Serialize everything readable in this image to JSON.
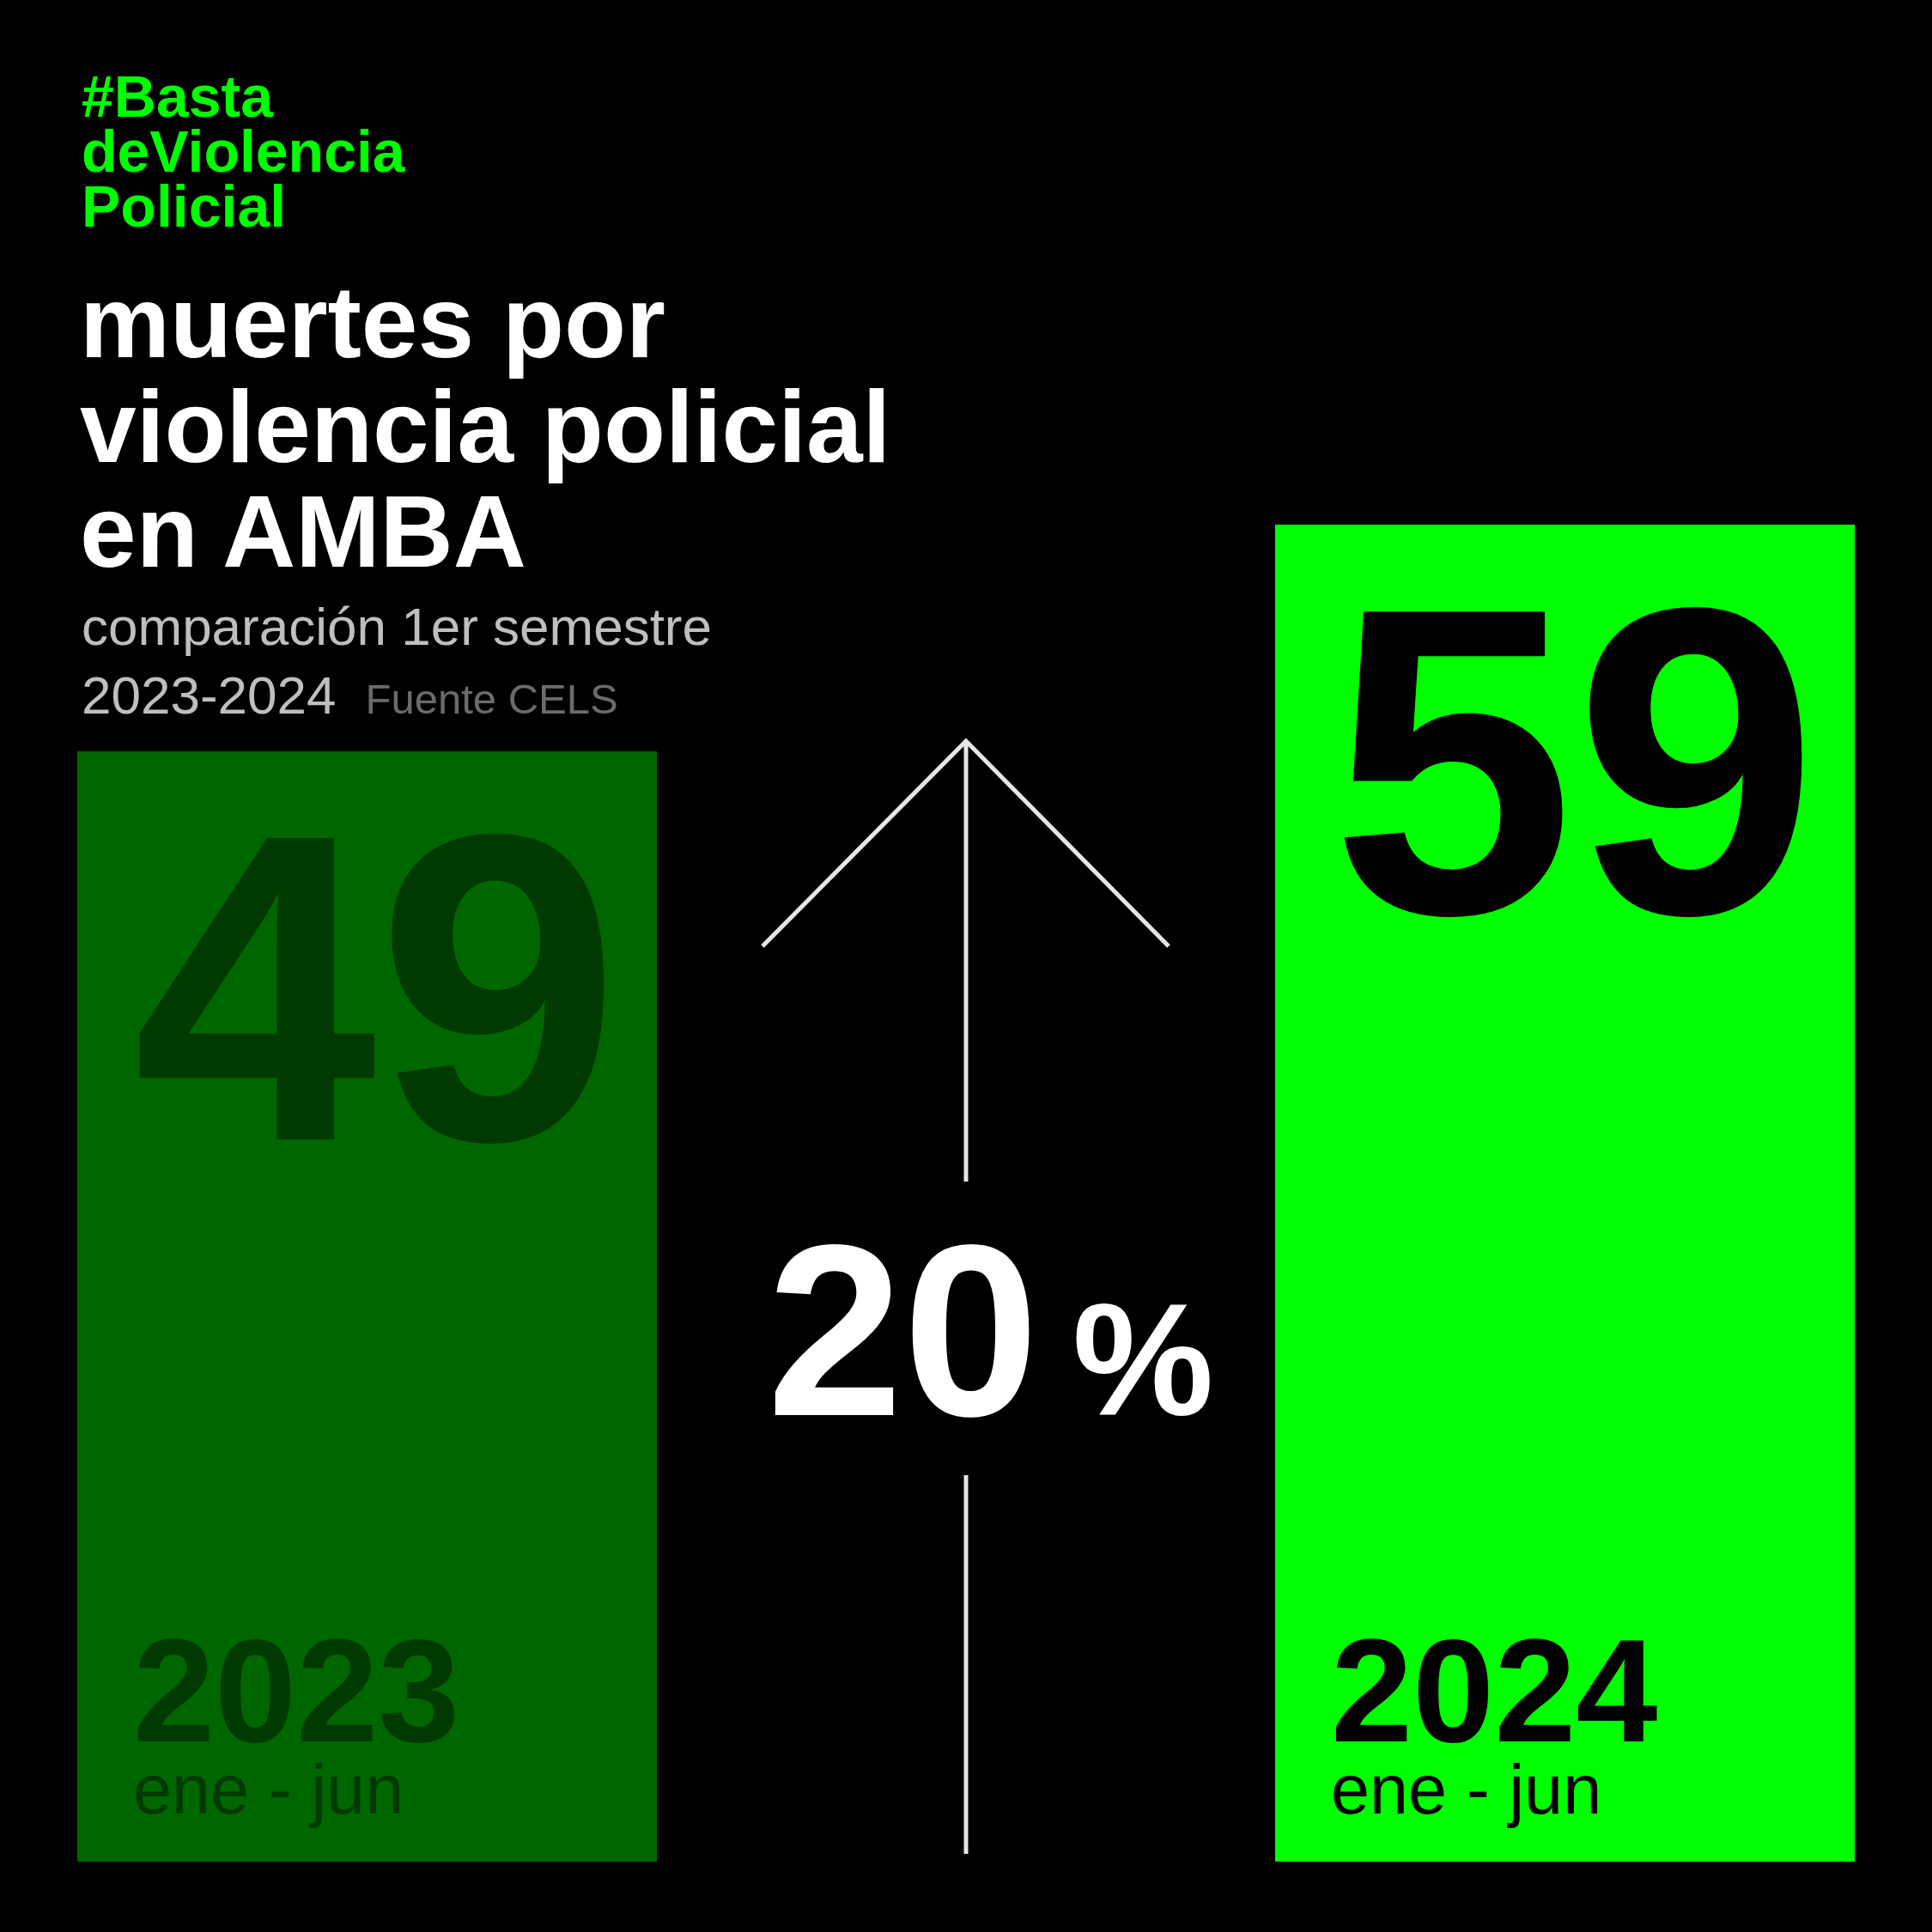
{
  "chart_data": {
    "type": "bar",
    "title": "muertes por violencia policial en AMBA",
    "subtitle": "comparación 1er semestre 2023-2024",
    "categories": [
      "2023\nene - jun",
      "2024\nene - jun"
    ],
    "values": [
      49,
      59
    ],
    "colors": [
      "#006600",
      "#00ff00"
    ],
    "data_labels": true,
    "grid": false,
    "tick_labels": "x",
    "annotations": [
      "#Basta\ndeViolencia\nPolicial",
      "Fuente CELS",
      "20%"
    ]
  }
}
